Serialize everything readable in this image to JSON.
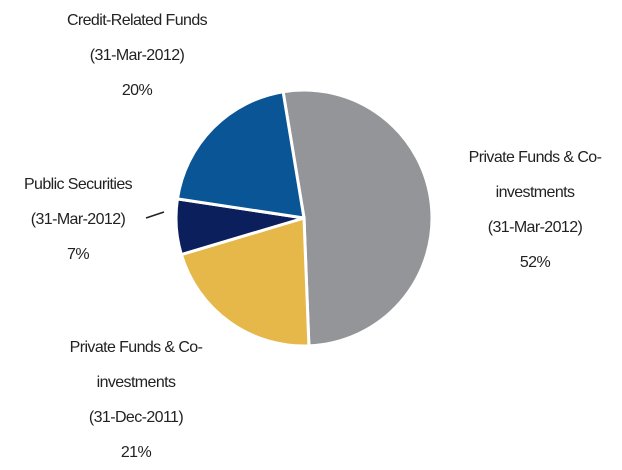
{
  "chart_data": {
    "type": "pie",
    "categories": [
      "Private Funds & Co-investments",
      "Private Funds & Co-investments",
      "Public Securities",
      "Credit-Related Funds"
    ],
    "dates": [
      "(31-Mar-2012)",
      "(31-Dec-2011)",
      "(31-Mar-2012)",
      "(31-Mar-2012)"
    ],
    "values": [
      52,
      21,
      7,
      20
    ],
    "value_labels": [
      "52%",
      "21%",
      "7%",
      "20%"
    ],
    "colors": [
      "#939598",
      "#e6b84a",
      "#0b1f5c",
      "#0a5596"
    ]
  }
}
